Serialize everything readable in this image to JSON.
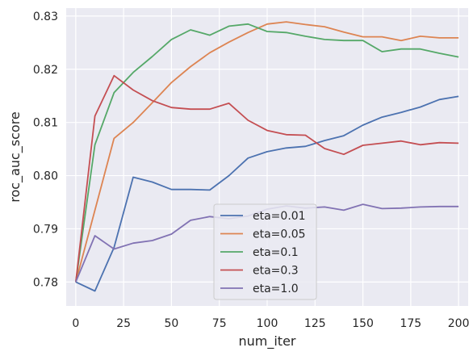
{
  "chart_data": {
    "type": "line",
    "xlabel": "num_iter",
    "ylabel": "roc_auc_score",
    "xlim": [
      -5,
      205
    ],
    "ylim": [
      0.7755,
      0.8315
    ],
    "x_ticks": [
      0,
      25,
      50,
      75,
      100,
      125,
      150,
      175,
      200
    ],
    "y_ticks": [
      0.78,
      0.79,
      0.8,
      0.81,
      0.82,
      0.83
    ],
    "x_tick_labels": [
      "0",
      "25",
      "50",
      "75",
      "100",
      "125",
      "150",
      "175",
      "200"
    ],
    "y_tick_labels": [
      "0.78",
      "0.79",
      "0.80",
      "0.81",
      "0.82",
      "0.83"
    ],
    "grid": true,
    "background": "#eaeaf2",
    "legend_position": "lower center",
    "x": [
      0,
      10,
      20,
      30,
      40,
      50,
      60,
      70,
      80,
      90,
      100,
      110,
      120,
      130,
      140,
      150,
      160,
      170,
      180,
      190,
      200
    ],
    "series": [
      {
        "name": "eta=0.01",
        "color": "#4c72b0",
        "values": [
          0.78,
          0.7783,
          0.7865,
          0.7997,
          0.7988,
          0.7974,
          0.7974,
          0.7973,
          0.8,
          0.8033,
          0.8045,
          0.8052,
          0.8055,
          0.8066,
          0.8075,
          0.8095,
          0.811,
          0.8119,
          0.8129,
          0.8143,
          0.8149
        ]
      },
      {
        "name": "eta=0.05",
        "color": "#dd8452",
        "values": [
          0.78,
          0.7935,
          0.807,
          0.81,
          0.8137,
          0.8175,
          0.8205,
          0.8231,
          0.8251,
          0.8269,
          0.8285,
          0.8289,
          0.8284,
          0.828,
          0.827,
          0.8261,
          0.8261,
          0.8254,
          0.8262,
          0.8259,
          0.8259
        ]
      },
      {
        "name": "eta=0.1",
        "color": "#55a868",
        "values": [
          0.78,
          0.8058,
          0.8156,
          0.8194,
          0.8224,
          0.8256,
          0.8274,
          0.8264,
          0.8281,
          0.8285,
          0.8271,
          0.8269,
          0.8262,
          0.8256,
          0.8254,
          0.8254,
          0.8233,
          0.8238,
          0.8238,
          0.823,
          0.8223
        ]
      },
      {
        "name": "eta=0.3",
        "color": "#c44e52",
        "values": [
          0.78,
          0.8112,
          0.8188,
          0.8161,
          0.8141,
          0.8128,
          0.8125,
          0.8125,
          0.8136,
          0.8104,
          0.8085,
          0.8077,
          0.8076,
          0.8051,
          0.804,
          0.8057,
          0.8061,
          0.8065,
          0.8058,
          0.8062,
          0.8061
        ]
      },
      {
        "name": "eta=1.0",
        "color": "#8172b3",
        "values": [
          0.78,
          0.7887,
          0.7862,
          0.7873,
          0.7878,
          0.789,
          0.7916,
          0.7923,
          0.7919,
          0.7924,
          0.7937,
          0.7943,
          0.7939,
          0.7941,
          0.7935,
          0.7946,
          0.7938,
          0.7939,
          0.7941,
          0.7942,
          0.7942
        ]
      }
    ]
  }
}
